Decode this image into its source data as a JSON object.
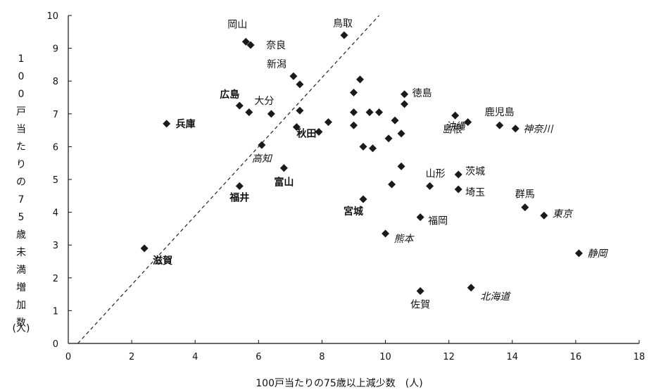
{
  "chart_data": {
    "type": "scatter",
    "xlabel": "100戸当たりの75歳以上減少数　(人)",
    "ylabel": "100戸当たりの75歳未満増加数",
    "ylabel_unit": "(人)",
    "xlim": [
      0,
      18
    ],
    "ylim": [
      0,
      10
    ],
    "x_ticks": [
      "0",
      "2",
      "4",
      "6",
      "8",
      "10",
      "12",
      "14",
      "16",
      "18"
    ],
    "y_ticks": [
      "0",
      "1",
      "2",
      "3",
      "4",
      "5",
      "6",
      "7",
      "8",
      "9",
      "10"
    ],
    "reference_line": {
      "style": "dashed",
      "from": [
        0.3,
        0
      ],
      "to": [
        9.8,
        10
      ]
    },
    "marker": "diamond",
    "marker_color": "#1a1a1a",
    "points": [
      {
        "x": 8.7,
        "y": 9.4,
        "label": "鳥取",
        "style": "normal"
      },
      {
        "x": 5.6,
        "y": 9.2,
        "label": "岡山",
        "style": "normal"
      },
      {
        "x": 5.75,
        "y": 9.1,
        "label": "奈良",
        "style": "normal"
      },
      {
        "x": 7.1,
        "y": 8.15,
        "label": "新潟",
        "style": "normal"
      },
      {
        "x": 5.4,
        "y": 7.25,
        "label": "広島",
        "style": "bold"
      },
      {
        "x": 6.4,
        "y": 7.0,
        "label": "大分",
        "style": "normal"
      },
      {
        "x": 3.1,
        "y": 6.7,
        "label": "兵庫",
        "style": "bold"
      },
      {
        "x": 6.1,
        "y": 6.05,
        "label": "高知",
        "style": "italic"
      },
      {
        "x": 7.2,
        "y": 6.6,
        "label": "秋田",
        "style": "bold"
      },
      {
        "x": 6.8,
        "y": 5.35,
        "label": "富山",
        "style": "bold"
      },
      {
        "x": 5.4,
        "y": 4.8,
        "label": "福井",
        "style": "bold"
      },
      {
        "x": 2.4,
        "y": 2.9,
        "label": "滋賀",
        "style": "bold"
      },
      {
        "x": 10.6,
        "y": 7.6,
        "label": "徳島",
        "style": "normal"
      },
      {
        "x": 12.6,
        "y": 6.75,
        "label": "島根",
        "style": "normal"
      },
      {
        "x": 13.6,
        "y": 6.65,
        "label": "鹿児島",
        "style": "normal"
      },
      {
        "x": 14.1,
        "y": 6.55,
        "label": "神奈川",
        "style": "italic"
      },
      {
        "x": 12.2,
        "y": 6.95,
        "label": "沖縄",
        "style": "italic"
      },
      {
        "x": 11.4,
        "y": 4.8,
        "label": "山形",
        "style": "normal"
      },
      {
        "x": 12.3,
        "y": 5.15,
        "label": "茨城",
        "style": "normal"
      },
      {
        "x": 12.3,
        "y": 4.7,
        "label": "埼玉",
        "style": "normal"
      },
      {
        "x": 14.4,
        "y": 4.15,
        "label": "群馬",
        "style": "normal"
      },
      {
        "x": 15.0,
        "y": 3.9,
        "label": "東京",
        "style": "italic"
      },
      {
        "x": 9.3,
        "y": 4.4,
        "label": "宮城",
        "style": "bold"
      },
      {
        "x": 11.1,
        "y": 3.85,
        "label": "福岡",
        "style": "normal"
      },
      {
        "x": 10.0,
        "y": 3.35,
        "label": "熊本",
        "style": "italic"
      },
      {
        "x": 16.1,
        "y": 2.75,
        "label": "静岡",
        "style": "italic"
      },
      {
        "x": 11.1,
        "y": 1.6,
        "label": "佐賀",
        "style": "normal"
      },
      {
        "x": 12.7,
        "y": 1.7,
        "label": "北海道",
        "style": "italic"
      },
      {
        "x": 5.7,
        "y": 7.05,
        "label": "",
        "style": "normal"
      },
      {
        "x": 7.3,
        "y": 7.9,
        "label": "",
        "style": "normal"
      },
      {
        "x": 7.3,
        "y": 7.1,
        "label": "",
        "style": "normal"
      },
      {
        "x": 8.2,
        "y": 6.75,
        "label": "",
        "style": "normal"
      },
      {
        "x": 7.9,
        "y": 6.45,
        "label": "",
        "style": "normal"
      },
      {
        "x": 9.0,
        "y": 7.65,
        "label": "",
        "style": "normal"
      },
      {
        "x": 9.2,
        "y": 8.05,
        "label": "",
        "style": "normal"
      },
      {
        "x": 9.0,
        "y": 7.05,
        "label": "",
        "style": "normal"
      },
      {
        "x": 9.0,
        "y": 6.65,
        "label": "",
        "style": "normal"
      },
      {
        "x": 9.5,
        "y": 7.05,
        "label": "",
        "style": "normal"
      },
      {
        "x": 9.8,
        "y": 7.05,
        "label": "",
        "style": "normal"
      },
      {
        "x": 10.6,
        "y": 7.3,
        "label": "",
        "style": "normal"
      },
      {
        "x": 10.3,
        "y": 6.8,
        "label": "",
        "style": "normal"
      },
      {
        "x": 10.5,
        "y": 6.4,
        "label": "",
        "style": "normal"
      },
      {
        "x": 10.1,
        "y": 6.25,
        "label": "",
        "style": "normal"
      },
      {
        "x": 9.3,
        "y": 6.0,
        "label": "",
        "style": "normal"
      },
      {
        "x": 9.6,
        "y": 5.95,
        "label": "",
        "style": "normal"
      },
      {
        "x": 10.5,
        "y": 5.4,
        "label": "",
        "style": "normal"
      },
      {
        "x": 10.2,
        "y": 4.85,
        "label": "",
        "style": "normal"
      }
    ]
  }
}
